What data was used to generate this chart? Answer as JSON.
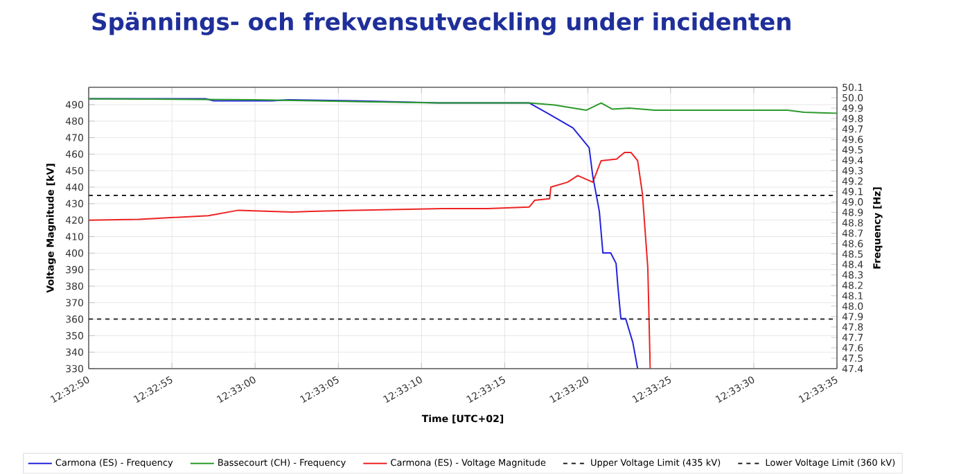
{
  "chart_data": {
    "type": "line",
    "title": "Spännings- och frekvensutveckling under incidenten",
    "xlabel": "Time [UTC+02]",
    "ylabel": "Voltage Magnitude [kV]",
    "y2label": "Frequency [Hz]",
    "xlim": [
      12.54722,
      12.55972
    ],
    "xticks": [
      {
        "value": 12.54722,
        "label": "12:32:50"
      },
      {
        "value": 12.54861,
        "label": "12:32:55"
      },
      {
        "value": 12.55,
        "label": "12:33:00"
      },
      {
        "value": 12.55139,
        "label": "12:33:05"
      },
      {
        "value": 12.55278,
        "label": "12:33:10"
      },
      {
        "value": 12.55417,
        "label": "12:33:15"
      },
      {
        "value": 12.55556,
        "label": "12:33:20"
      },
      {
        "value": 12.55694,
        "label": "12:33:25"
      },
      {
        "value": 12.55833,
        "label": "12:33:30"
      },
      {
        "value": 12.55972,
        "label": "12:33:35"
      }
    ],
    "ylim": [
      330,
      500.5
    ],
    "yticks": [
      330,
      340,
      350,
      360,
      370,
      380,
      390,
      400,
      410,
      420,
      430,
      440,
      450,
      460,
      470,
      480,
      490
    ],
    "y2lim": [
      47.4,
      50.1
    ],
    "y2ticks": [
      {
        "value": 47.4,
        "label": "47.4"
      },
      {
        "value": 47.5,
        "label": "47.5"
      },
      {
        "value": 47.6,
        "label": "47.6"
      },
      {
        "value": 47.7,
        "label": "47.7"
      },
      {
        "value": 47.8,
        "label": "47.8"
      },
      {
        "value": 47.9,
        "label": "47.9"
      },
      {
        "value": 48.0,
        "label": "48.0"
      },
      {
        "value": 48.1,
        "label": "48.1"
      },
      {
        "value": 48.2,
        "label": "48.2"
      },
      {
        "value": 48.3,
        "label": "48.3"
      },
      {
        "value": 48.4,
        "label": "48.4"
      },
      {
        "value": 48.5,
        "label": "48.5"
      },
      {
        "value": 48.6,
        "label": "48.6"
      },
      {
        "value": 48.7,
        "label": "48.7"
      },
      {
        "value": 48.8,
        "label": "48.8"
      },
      {
        "value": 48.9,
        "label": "48.9"
      },
      {
        "value": 49.0,
        "label": "49.0"
      },
      {
        "value": 49.1,
        "label": "49.1"
      },
      {
        "value": 49.2,
        "label": "49.2"
      },
      {
        "value": 49.3,
        "label": "49.3"
      },
      {
        "value": 49.4,
        "label": "49.4"
      },
      {
        "value": 49.5,
        "label": "49.5"
      },
      {
        "value": 49.6,
        "label": "49.6"
      },
      {
        "value": 49.7,
        "label": "49.7"
      },
      {
        "value": 49.8,
        "label": "49.8"
      },
      {
        "value": 49.9,
        "label": "49.9"
      },
      {
        "value": 50.0,
        "label": "50.0"
      },
      {
        "value": 50.1,
        "label": "50.1"
      }
    ],
    "grid": true,
    "legend": "bottom",
    "line_style": "solid",
    "marker": "none",
    "series": [
      {
        "name": "Carmona (ES) - Frequency",
        "color": "#2222dd",
        "axis": "y2",
        "x": [
          12.54722,
          12.54917,
          12.54931,
          12.55028,
          12.55056,
          12.55167,
          12.55306,
          12.55458,
          12.55492,
          12.55531,
          12.55558,
          12.55564,
          12.55575,
          12.55581,
          12.55594,
          12.55603,
          12.55606,
          12.55611,
          12.55619,
          12.55631,
          12.55639
        ],
        "values": [
          49.99,
          49.99,
          49.97,
          49.97,
          49.98,
          49.97,
          49.95,
          49.95,
          49.84,
          49.71,
          49.52,
          49.25,
          48.91,
          48.51,
          48.51,
          48.41,
          48.19,
          47.88,
          47.88,
          47.65,
          47.4
        ]
      },
      {
        "name": "Bassecourt (CH) - Frequency",
        "color": "#2a9a2a",
        "axis": "y2",
        "x": [
          12.54722,
          12.55,
          12.55306,
          12.55458,
          12.555,
          12.55553,
          12.55578,
          12.55597,
          12.55625,
          12.55667,
          12.55833,
          12.55889,
          12.55917,
          12.55972
        ],
        "values": [
          49.99,
          49.98,
          49.95,
          49.95,
          49.93,
          49.88,
          49.95,
          49.89,
          49.9,
          49.88,
          49.88,
          49.88,
          49.86,
          49.85
        ]
      },
      {
        "name": "Carmona (ES) - Voltage Magnitude",
        "color": "#ee2222",
        "axis": "y",
        "x": [
          12.54722,
          12.54806,
          12.54922,
          12.54972,
          12.55061,
          12.55094,
          12.55167,
          12.55314,
          12.55389,
          12.55458,
          12.55467,
          12.55492,
          12.55494,
          12.55522,
          12.55539,
          12.55564,
          12.55578,
          12.55604,
          12.55617,
          12.55628,
          12.55639,
          12.55647,
          12.55656,
          12.5566
        ],
        "values": [
          420,
          420.5,
          422.7,
          426,
          424.9,
          425.3,
          426,
          427,
          427,
          428,
          432,
          433,
          440,
          443,
          447,
          443,
          456,
          457,
          461,
          461,
          456,
          436,
          391,
          330
        ]
      }
    ],
    "ref_lines": [
      {
        "axis": "y",
        "value": 435,
        "label": "Upper Voltage Limit (435 kV)",
        "color": "#222222",
        "line_style": "dashed"
      },
      {
        "axis": "y",
        "value": 360,
        "label": "Lower Voltage Limit (360 kV)",
        "color": "#222222",
        "line_style": "dashed"
      }
    ]
  }
}
